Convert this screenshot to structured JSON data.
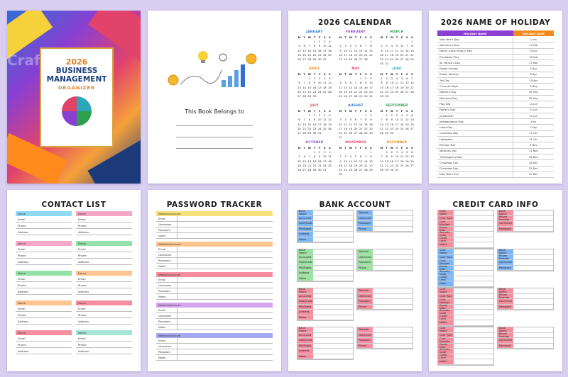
{
  "watermark": "CraftNest",
  "cover": {
    "year": "2026",
    "line1": "BUSINESS",
    "line2": "MANAGEMENT",
    "line3": "ORGANIZER",
    "colors": [
      "#2f6fd6",
      "#8a3fd1",
      "#e2436b",
      "#f6a13a",
      "#1c3a7a"
    ]
  },
  "belongs": {
    "text": "This Book Belongs to"
  },
  "calendar": {
    "title": "2026 CALENDAR",
    "day_headers": [
      "M",
      "T",
      "W",
      "T",
      "F",
      "S",
      "S"
    ],
    "months": [
      {
        "name": "JANUARY",
        "color": "#1f6fd6",
        "offset": 3,
        "days": 31
      },
      {
        "name": "FEBRUARY",
        "color": "#8a3fd1",
        "offset": 6,
        "days": 28
      },
      {
        "name": "MARCH",
        "color": "#2e9e4f",
        "offset": 6,
        "days": 31
      },
      {
        "name": "APRIL",
        "color": "#f08a1c",
        "offset": 2,
        "days": 30
      },
      {
        "name": "MAY",
        "color": "#e2436b",
        "offset": 4,
        "days": 31
      },
      {
        "name": "JUNE",
        "color": "#2aa7b8",
        "offset": 0,
        "days": 30
      },
      {
        "name": "JULY",
        "color": "#d63a3a",
        "offset": 2,
        "days": 31
      },
      {
        "name": "AUGUST",
        "color": "#1f6fd6",
        "offset": 5,
        "days": 31
      },
      {
        "name": "SEPTEMBER",
        "color": "#2e9e4f",
        "offset": 1,
        "days": 30
      },
      {
        "name": "OCTOBER",
        "color": "#8a3fd1",
        "offset": 3,
        "days": 31
      },
      {
        "name": "NOVEMBER",
        "color": "#e2436b",
        "offset": 6,
        "days": 30
      },
      {
        "name": "DECEMBER",
        "color": "#f08a1c",
        "offset": 1,
        "days": 31
      }
    ]
  },
  "holiday": {
    "title": "2026 NAME OF HOLIDAY",
    "head_name": "HOLIDAY NAME",
    "head_date": "HOLIDAY DATE",
    "rows": [
      {
        "name": "New Year's Day",
        "date": "1 Jan"
      },
      {
        "name": "Valentine's Day",
        "date": "14 Feb"
      },
      {
        "name": "Martin Luther King Jr. Day",
        "date": "19 Jan"
      },
      {
        "name": "Presidents' Day",
        "date": "16 Feb"
      },
      {
        "name": "St. Patrick's Day",
        "date": "17 Mar"
      },
      {
        "name": "Easter Sunday",
        "date": "5 Apr"
      },
      {
        "name": "Easter Monday",
        "date": "6 Apr"
      },
      {
        "name": "Tax Day",
        "date": "15 Apr"
      },
      {
        "name": "Cinco de Mayo",
        "date": "5 May"
      },
      {
        "name": "Mother's Day",
        "date": "10 May"
      },
      {
        "name": "Memorial Day",
        "date": "25 May"
      },
      {
        "name": "Flag Day",
        "date": "14 Jun"
      },
      {
        "name": "Father's Day",
        "date": "21 Jun"
      },
      {
        "name": "Juneteenth",
        "date": "19 Jun"
      },
      {
        "name": "Independence Day",
        "date": "4 Jul"
      },
      {
        "name": "Labor Day",
        "date": "7 Sep"
      },
      {
        "name": "Columbus Day",
        "date": "12 Oct"
      },
      {
        "name": "Halloween",
        "date": "31 Oct"
      },
      {
        "name": "Election Day",
        "date": "3 Nov"
      },
      {
        "name": "Veterans Day",
        "date": "11 Nov"
      },
      {
        "name": "Thanksgiving Day",
        "date": "26 Nov"
      },
      {
        "name": "Christmas Eve",
        "date": "24 Dec"
      },
      {
        "name": "Christmas Day",
        "date": "25 Dec"
      },
      {
        "name": "New Year's Eve",
        "date": "31 Dec"
      }
    ]
  },
  "contacts": {
    "title": "CONTACT LIST",
    "head_label": "Name",
    "row_labels": [
      "Email",
      "Phone",
      "Address"
    ],
    "colors": [
      "#8fd9f5",
      "#f6a7c5",
      "#93e0a8",
      "#fdc48f",
      "#f58f9f",
      "#a6e4d5"
    ]
  },
  "password": {
    "title": "PASSWORD TRACKER",
    "head_label": "Website/Account",
    "row_labels": [
      "Email",
      "Username",
      "Password",
      "Notes"
    ],
    "colors": [
      "#f7e27a",
      "#fdc48f",
      "#f58f9f",
      "#d6a5f0",
      "#a7a9f0"
    ]
  },
  "bank": {
    "title": "BANK ACCOUNT",
    "left_labels": [
      "Bank Name",
      "Account#",
      "Swift/Code",
      "PIN/Digits",
      "Address",
      "Notes"
    ],
    "right_labels": [
      "Website",
      "Username",
      "Password",
      "Phone"
    ],
    "colors": [
      "#7fb6f5",
      "#9be3a0",
      "#f58f9f",
      "#f78da2"
    ]
  },
  "credit": {
    "title": "CREDIT CARD INFO",
    "left_labels": [
      "Card Name",
      "Card Type",
      "Card Number",
      "Expire Date",
      "Security Code",
      "Credit Limit",
      "Notes"
    ],
    "right_labels": [
      "Bank Name",
      "Phone Number",
      "Username",
      "Password"
    ],
    "colors": [
      "#f58f9f",
      "#7fb6f5",
      "#f58f9f",
      "#f58f9f"
    ]
  }
}
